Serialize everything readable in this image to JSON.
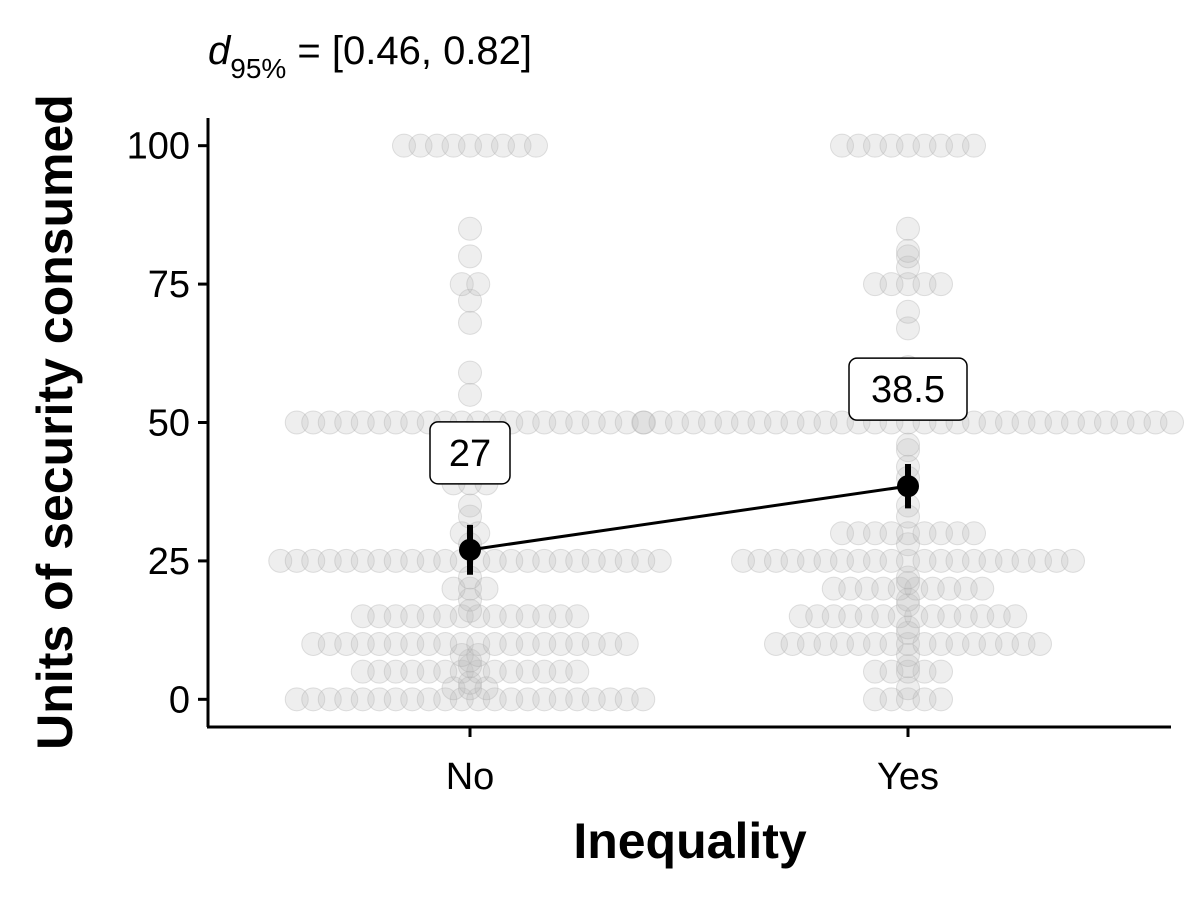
{
  "chart_data": {
    "type": "scatter",
    "subtitle": {
      "symbol": "d",
      "subscript": "95%",
      "text": " = [0.46, 0.82]"
    },
    "xlabel": "Inequality",
    "ylabel": "Units of security consumed",
    "categories": [
      "No",
      "Yes"
    ],
    "y_ticks": [
      0,
      25,
      50,
      75,
      100
    ],
    "ylim": [
      -5,
      105
    ],
    "grid": false,
    "summary": [
      {
        "category": "No",
        "mean": 27,
        "label": "27",
        "ci": [
          22.5,
          31.5
        ]
      },
      {
        "category": "Yes",
        "mean": 38.5,
        "label": "38.5",
        "ci": [
          34.5,
          42.5
        ]
      }
    ],
    "points": [
      {
        "category": "No",
        "values": [
          100,
          100,
          100,
          100,
          100,
          100,
          100,
          100,
          100,
          85,
          80,
          75,
          75,
          72,
          68,
          59,
          55,
          50,
          50,
          50,
          50,
          50,
          50,
          50,
          50,
          50,
          50,
          50,
          50,
          50,
          50,
          50,
          50,
          50,
          50,
          50,
          50,
          50,
          50,
          39,
          39,
          39,
          35,
          33,
          30,
          30,
          28,
          25,
          25,
          25,
          25,
          25,
          25,
          25,
          25,
          25,
          25,
          25,
          25,
          25,
          25,
          25,
          25,
          25,
          25,
          25,
          25,
          25,
          25,
          25,
          25,
          22,
          20,
          20,
          20,
          18,
          16,
          15,
          15,
          15,
          15,
          15,
          15,
          15,
          15,
          15,
          15,
          15,
          15,
          15,
          15,
          10,
          10,
          10,
          10,
          10,
          10,
          10,
          10,
          10,
          10,
          10,
          10,
          10,
          10,
          10,
          10,
          10,
          10,
          10,
          10,
          8,
          8,
          7,
          6,
          5,
          5,
          5,
          5,
          5,
          5,
          5,
          5,
          5,
          5,
          5,
          5,
          5,
          5,
          3,
          2,
          2,
          2,
          0,
          0,
          0,
          0,
          0,
          0,
          0,
          0,
          0,
          0,
          0,
          0,
          0,
          0,
          0,
          0,
          0,
          0,
          0,
          0,
          0,
          0
        ]
      },
      {
        "category": "Yes",
        "values": [
          100,
          100,
          100,
          100,
          100,
          100,
          100,
          100,
          100,
          85,
          81,
          80,
          78,
          75,
          75,
          75,
          75,
          75,
          70,
          67,
          60,
          58,
          57,
          55,
          54,
          50,
          50,
          50,
          50,
          50,
          50,
          50,
          50,
          50,
          50,
          50,
          50,
          50,
          50,
          50,
          50,
          50,
          50,
          50,
          50,
          50,
          50,
          50,
          50,
          50,
          50,
          50,
          50,
          50,
          50,
          50,
          50,
          50,
          46,
          45,
          42,
          40,
          35,
          33,
          30,
          30,
          30,
          30,
          30,
          30,
          30,
          30,
          30,
          28,
          25,
          25,
          25,
          25,
          25,
          25,
          25,
          25,
          25,
          25,
          25,
          25,
          25,
          25,
          25,
          25,
          25,
          25,
          25,
          25,
          25,
          22,
          21,
          20,
          20,
          20,
          20,
          20,
          20,
          20,
          20,
          20,
          20,
          18,
          17,
          15,
          15,
          15,
          15,
          15,
          15,
          15,
          15,
          15,
          15,
          15,
          15,
          15,
          15,
          13,
          12,
          10,
          10,
          10,
          10,
          10,
          10,
          10,
          10,
          10,
          10,
          10,
          10,
          10,
          10,
          10,
          10,
          10,
          8,
          6,
          5,
          5,
          5,
          5,
          5,
          2,
          0,
          0,
          0,
          0,
          0
        ]
      }
    ],
    "colors": {
      "point_fill": "#bdbdbd",
      "point_stroke": "#a8a8a8",
      "summary": "#000000",
      "axis": "#000000",
      "label_box_fill": "#ffffff"
    }
  }
}
